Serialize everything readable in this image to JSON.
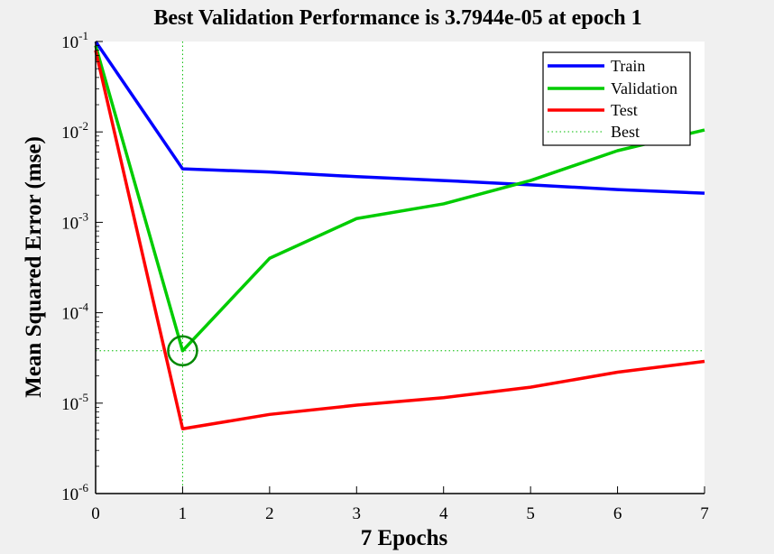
{
  "chart_data": {
    "type": "line",
    "title": "Best Validation Performance is 3.7944e-05 at epoch 1",
    "xlabel": "7 Epochs",
    "ylabel": "Mean Squared Error  (mse)",
    "xlim": [
      0,
      7
    ],
    "ylim": [
      1e-06,
      0.1
    ],
    "yscale": "log",
    "x_ticks": [
      "0",
      "1",
      "2",
      "3",
      "4",
      "5",
      "6",
      "7"
    ],
    "y_ticks": [
      {
        "base": "10",
        "exp": "-6"
      },
      {
        "base": "10",
        "exp": "-5"
      },
      {
        "base": "10",
        "exp": "-4"
      },
      {
        "base": "10",
        "exp": "-3"
      },
      {
        "base": "10",
        "exp": "-2"
      },
      {
        "base": "10",
        "exp": "-1"
      }
    ],
    "x": [
      0,
      1,
      2,
      3,
      4,
      5,
      6,
      7
    ],
    "series": [
      {
        "name": "Train",
        "color": "#0000ff",
        "values": [
          0.1,
          0.0039,
          0.0036,
          0.0032,
          0.0029,
          0.0026,
          0.0023,
          0.0021
        ]
      },
      {
        "name": "Validation",
        "color": "#00cc00",
        "values": [
          0.09,
          3.7944e-05,
          0.0004,
          0.0011,
          0.0016,
          0.0029,
          0.0062,
          0.0105
        ]
      },
      {
        "name": "Test",
        "color": "#ff0000",
        "values": [
          0.08,
          5.2e-06,
          7.5e-06,
          9.5e-06,
          1.15e-05,
          1.5e-05,
          2.2e-05,
          2.9e-05
        ]
      }
    ],
    "best": {
      "name": "Best",
      "epoch": 1,
      "value": 3.7944e-05,
      "color": "#00bb00",
      "marker_color": "#008800"
    },
    "legend": {
      "placement": "top-right",
      "entries": [
        "Train",
        "Validation",
        "Test",
        "Best"
      ]
    },
    "grid": false
  }
}
